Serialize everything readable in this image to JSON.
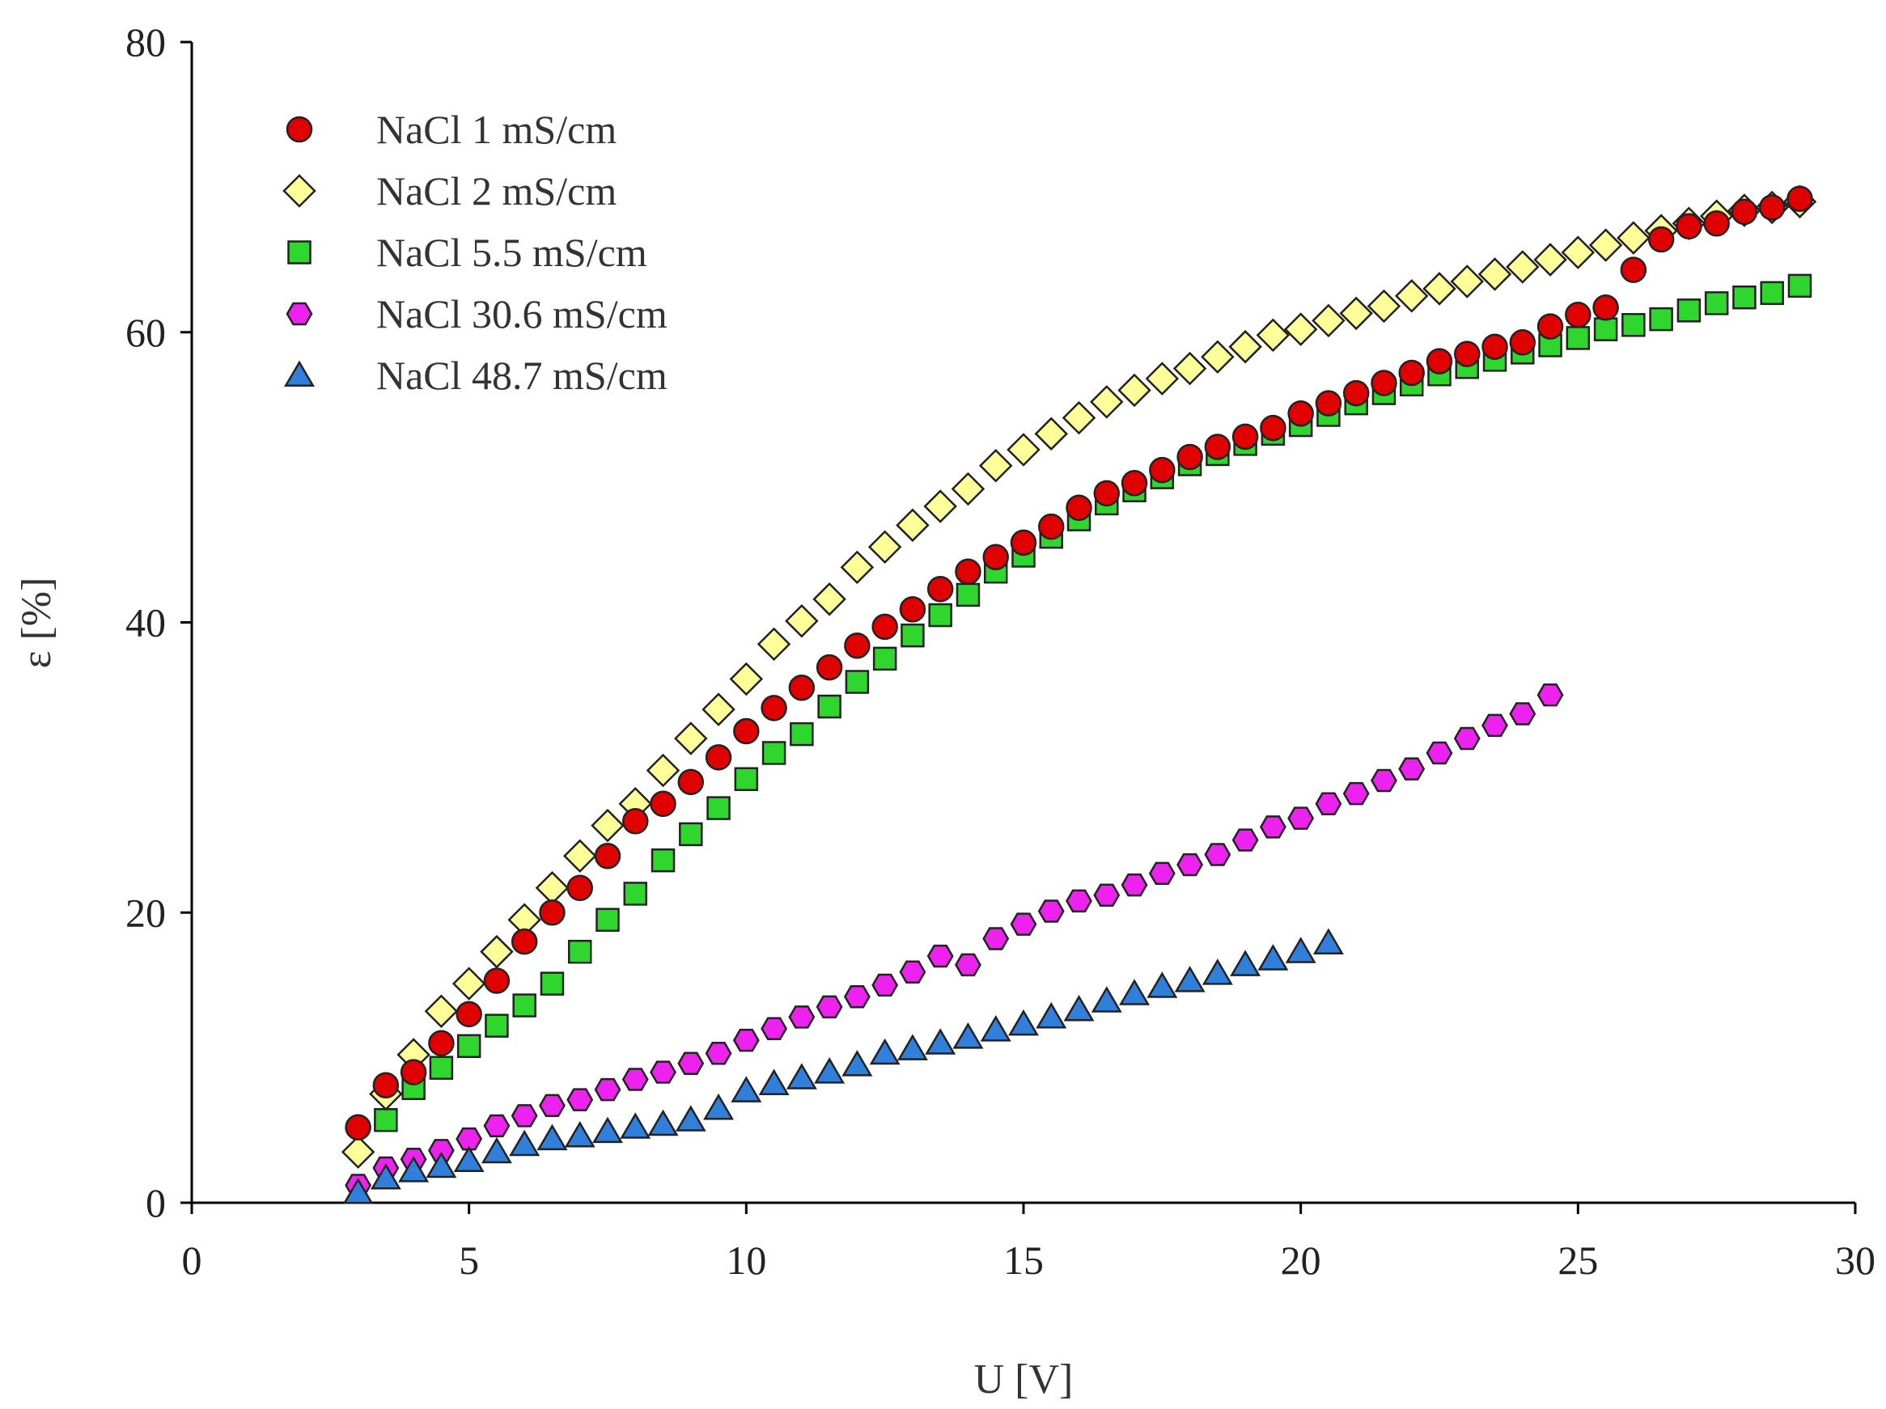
{
  "chart_data": {
    "type": "scatter",
    "title": "",
    "xlabel": "U [V]",
    "ylabel": "ε [%]",
    "xlim": [
      0,
      30
    ],
    "ylim": [
      0,
      80
    ],
    "xticks": [
      "0",
      "5",
      "10",
      "15",
      "20",
      "25",
      "30"
    ],
    "yticks": [
      "0",
      "20",
      "40",
      "60",
      "80"
    ],
    "grid": false,
    "legend_position": "top-left",
    "series": [
      {
        "name": "NaCl 1 mS/cm",
        "marker": "circle",
        "color": "#e00000",
        "x": [
          3,
          3.5,
          4,
          4.5,
          5,
          5.5,
          6,
          6.5,
          7,
          7.5,
          8,
          8.5,
          9,
          9.5,
          10,
          10.5,
          11,
          11.5,
          12,
          12.5,
          13,
          13.5,
          14,
          14.5,
          15,
          15.5,
          16,
          16.5,
          17,
          17.5,
          18,
          18.5,
          19,
          19.5,
          20,
          20.5,
          21,
          21.5,
          22,
          22.5,
          23,
          23.5,
          24,
          24.5,
          25,
          25.5,
          26,
          26.5,
          27,
          27.5,
          28,
          28.5,
          29
        ],
        "y": [
          5.2,
          8.1,
          9,
          11,
          13,
          15.3,
          18,
          20,
          21.7,
          23.9,
          26.3,
          27.5,
          29,
          30.7,
          32.5,
          34.1,
          35.5,
          36.9,
          38.4,
          39.7,
          40.9,
          42.3,
          43.5,
          44.5,
          45.5,
          46.6,
          47.9,
          48.9,
          49.6,
          50.5,
          51.4,
          52.1,
          52.8,
          53.4,
          54.4,
          55.1,
          55.8,
          56.5,
          57.2,
          58,
          58.5,
          59,
          59.3,
          60.4,
          61.2,
          61.7,
          64.3,
          66.4,
          67.3,
          67.5,
          68.3,
          68.6,
          69.2
        ]
      },
      {
        "name": "NaCl 2 mS/cm",
        "marker": "diamond",
        "color": "#ffff99",
        "x": [
          3,
          3.5,
          4,
          4.5,
          5,
          5.5,
          6,
          6.5,
          7,
          7.5,
          8,
          8.5,
          9,
          9.5,
          10,
          10.5,
          11,
          11.5,
          12,
          12.5,
          13,
          13.5,
          14,
          14.5,
          15,
          15.5,
          16,
          16.5,
          17,
          17.5,
          18,
          18.5,
          19,
          19.5,
          20,
          20.5,
          21,
          21.5,
          22,
          22.5,
          23,
          23.5,
          24,
          24.5,
          25,
          25.5,
          26,
          26.5,
          27,
          27.5,
          28,
          28.5,
          29
        ],
        "y": [
          3.5,
          7.5,
          10.2,
          13.2,
          15.1,
          17.3,
          19.5,
          21.7,
          23.9,
          26,
          27.5,
          29.8,
          32,
          34,
          36.1,
          38.5,
          40.1,
          41.6,
          43.8,
          45.2,
          46.7,
          48,
          49.2,
          50.8,
          51.9,
          53,
          54.1,
          55.2,
          56,
          56.8,
          57.5,
          58.3,
          59,
          59.8,
          60.2,
          60.8,
          61.3,
          61.8,
          62.5,
          63,
          63.5,
          64,
          64.5,
          65,
          65.5,
          66,
          66.5,
          67,
          67.5,
          68,
          68.4,
          68.6,
          69
        ]
      },
      {
        "name": "NaCl 5.5 mS/cm",
        "marker": "square",
        "color": "#2ed62e",
        "x": [
          3.5,
          4,
          4.5,
          5,
          5.5,
          6,
          6.5,
          7,
          7.5,
          8,
          8.5,
          9,
          9.5,
          10,
          10.5,
          11,
          11.5,
          12,
          12.5,
          13,
          13.5,
          14,
          14.5,
          15,
          15.5,
          16,
          16.5,
          17,
          17.5,
          18,
          18.5,
          19,
          19.5,
          20,
          20.5,
          21,
          21.5,
          22,
          22.5,
          23,
          23.5,
          24,
          24.5,
          25,
          25.5,
          26,
          26.5,
          27,
          27.5,
          28,
          28.5,
          29
        ],
        "y": [
          5.7,
          7.9,
          9.3,
          10.8,
          12.2,
          13.6,
          15.1,
          17.3,
          19.5,
          21.3,
          23.6,
          25.4,
          27.2,
          29.2,
          31,
          32.3,
          34.2,
          35.9,
          37.5,
          39.1,
          40.5,
          41.9,
          43.5,
          44.6,
          45.9,
          47.1,
          48.2,
          49.1,
          50,
          50.9,
          51.6,
          52.3,
          53,
          53.6,
          54.3,
          55.1,
          55.8,
          56.4,
          57.1,
          57.6,
          58.1,
          58.6,
          59.1,
          59.6,
          60.2,
          60.5,
          60.9,
          61.5,
          62,
          62.4,
          62.7,
          63.2
        ]
      },
      {
        "name": "NaCl 30.6 mS/cm",
        "marker": "hexagon",
        "color": "#ee22ee",
        "x": [
          3,
          3.5,
          4,
          4.5,
          5,
          5.5,
          6,
          6.5,
          7,
          7.5,
          8,
          8.5,
          9,
          9.5,
          10,
          10.5,
          11,
          11.5,
          12,
          12.5,
          13,
          13.5,
          14,
          14.5,
          15,
          15.5,
          16,
          16.5,
          17,
          17.5,
          18,
          18.5,
          19,
          19.5,
          20,
          20.5,
          21,
          21.5,
          22,
          22.5,
          23,
          23.5,
          24,
          24.5
        ],
        "y": [
          1.2,
          2.4,
          3,
          3.6,
          4.4,
          5.3,
          6,
          6.7,
          7.1,
          7.8,
          8.5,
          9,
          9.6,
          10.3,
          11.2,
          12,
          12.8,
          13.5,
          14.2,
          15,
          15.9,
          17,
          16.4,
          18.2,
          19.2,
          20.1,
          20.8,
          21.2,
          21.9,
          22.7,
          23.3,
          24,
          25,
          25.9,
          26.5,
          27.5,
          28.2,
          29.1,
          29.9,
          31,
          32,
          32.9,
          33.7,
          35
        ]
      },
      {
        "name": "NaCl 48.7 mS/cm",
        "marker": "triangle",
        "color": "#2f7fdb",
        "x": [
          3,
          3.5,
          4,
          4.5,
          5,
          5.5,
          6,
          6.5,
          7,
          7.5,
          8,
          8.5,
          9,
          9.5,
          10,
          10.5,
          11,
          11.5,
          12,
          12.5,
          13,
          13.5,
          14,
          14.5,
          15,
          15.5,
          16,
          16.5,
          17,
          17.5,
          18,
          18.5,
          19,
          19.5,
          20,
          20.5
        ],
        "y": [
          0.7,
          1.7,
          2.2,
          2.5,
          2.9,
          3.5,
          4,
          4.4,
          4.6,
          4.9,
          5.2,
          5.4,
          5.7,
          6.5,
          7.7,
          8.2,
          8.6,
          9,
          9.5,
          10.3,
          10.6,
          11,
          11.4,
          11.9,
          12.3,
          12.8,
          13.3,
          13.9,
          14.4,
          14.9,
          15.3,
          15.8,
          16.4,
          16.8,
          17.3,
          17.9
        ]
      }
    ]
  }
}
